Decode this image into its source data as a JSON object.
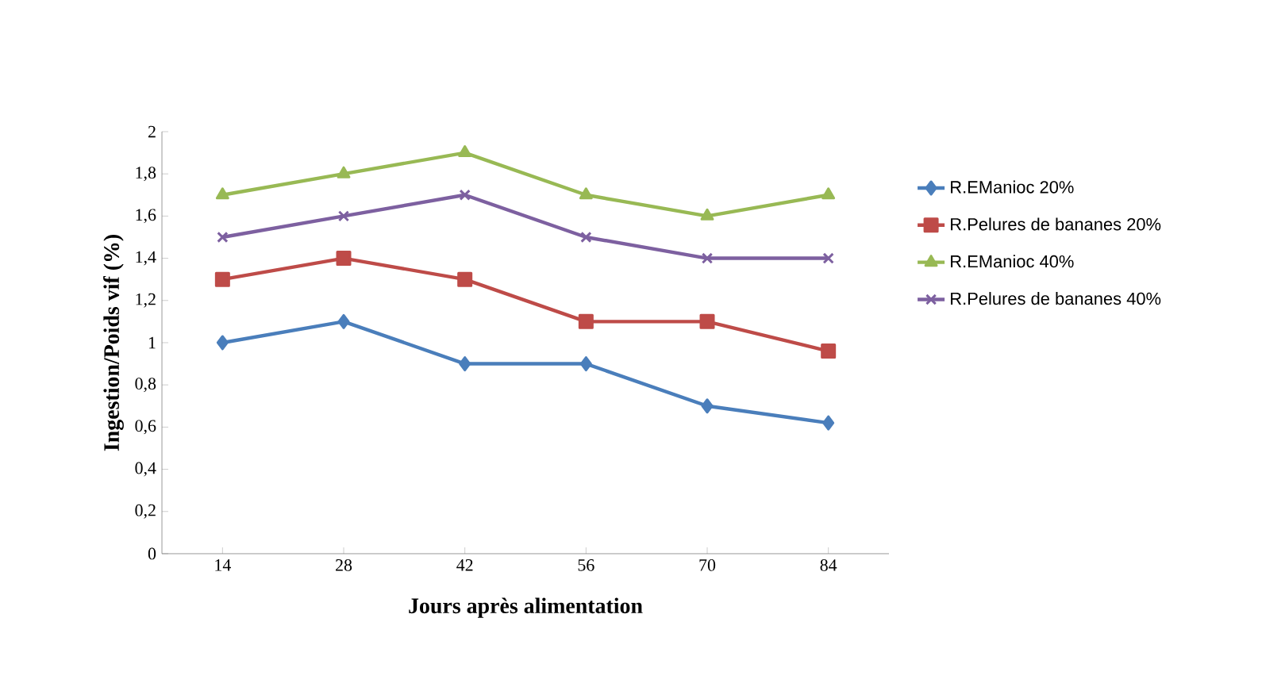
{
  "chart_data": {
    "type": "line",
    "xlabel": "Jours après alimentation",
    "ylabel": "Ingestion/Poids vif (%)",
    "categories": [
      "14",
      "28",
      "42",
      "56",
      "70",
      "84"
    ],
    "ylim": [
      0,
      2
    ],
    "yticks": [
      {
        "value": 0,
        "label": "0"
      },
      {
        "value": 0.2,
        "label": "0,2"
      },
      {
        "value": 0.4,
        "label": "0,4"
      },
      {
        "value": 0.6,
        "label": "0,6"
      },
      {
        "value": 0.8,
        "label": "0,8"
      },
      {
        "value": 1,
        "label": "1"
      },
      {
        "value": 1.2,
        "label": "1,2"
      },
      {
        "value": 1.4,
        "label": "1,4"
      },
      {
        "value": 1.6,
        "label": "1,6"
      },
      {
        "value": 1.8,
        "label": "1,8"
      },
      {
        "value": 2,
        "label": "2"
      }
    ],
    "legend": "right",
    "grid": false,
    "series": [
      {
        "name": "R.EManioc 20%",
        "color": "#4a7ebb",
        "marker": "diamond",
        "values": [
          1.0,
          1.1,
          0.9,
          0.9,
          0.7,
          0.62
        ]
      },
      {
        "name": "R.Pelures de bananes 20%",
        "color": "#be4b48",
        "marker": "square",
        "values": [
          1.3,
          1.4,
          1.3,
          1.1,
          1.1,
          0.96
        ]
      },
      {
        "name": "R.EManioc 40%",
        "color": "#98b954",
        "marker": "triangle",
        "values": [
          1.7,
          1.8,
          1.9,
          1.7,
          1.6,
          1.7
        ]
      },
      {
        "name": "R.Pelures de bananes 40%",
        "color": "#7d60a0",
        "marker": "cross",
        "values": [
          1.5,
          1.6,
          1.7,
          1.5,
          1.4,
          1.4
        ]
      }
    ]
  }
}
